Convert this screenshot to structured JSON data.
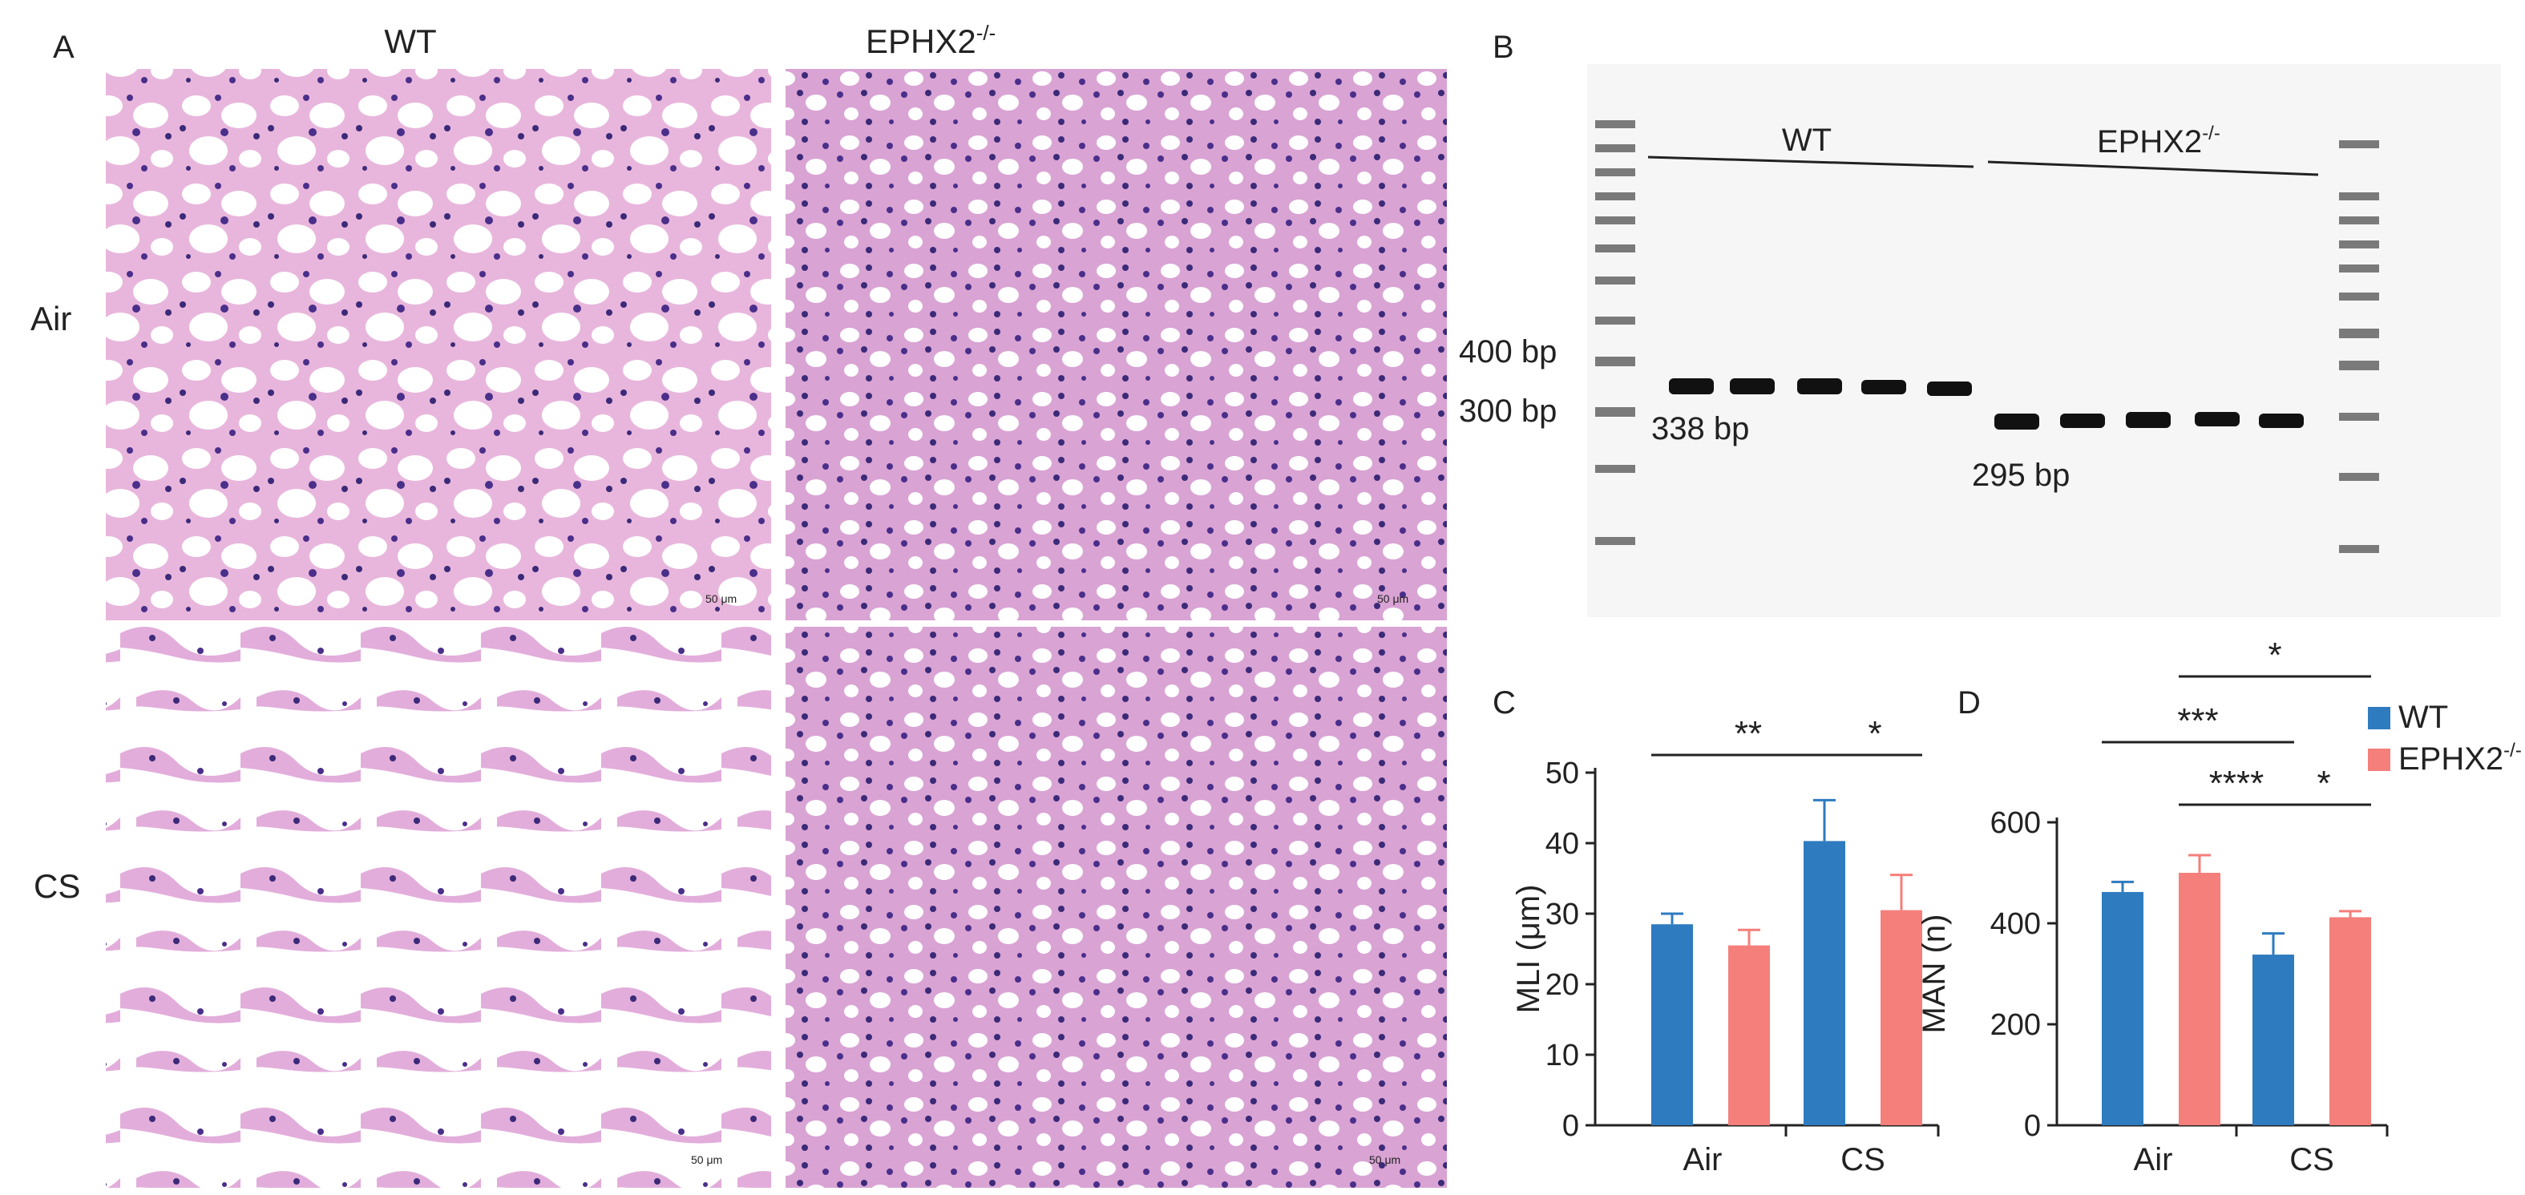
{
  "panel_a": {
    "letter": "A",
    "col_wt": "WT",
    "col_ko": "EPHX2",
    "col_ko_sup": "-/-",
    "row_air": "Air",
    "row_cs": "CS",
    "scale_label": "50 μm"
  },
  "panel_b": {
    "letter": "B",
    "group_wt": "WT",
    "group_ko": "EPHX2",
    "group_ko_sup": "-/-",
    "marker_400": "400 bp",
    "marker_300": "300 bp",
    "band_wt": "338 bp",
    "band_ko": "295 bp"
  },
  "legend": {
    "wt": "WT",
    "ko": "EPHX2",
    "ko_sup": "-/-",
    "wt_color": "#2e7bbf",
    "ko_color": "#f47f7b"
  },
  "chart_data": [
    {
      "type": "bar",
      "panel": "C",
      "ylabel": "MLI (μm)",
      "categories": [
        "Air",
        "CS"
      ],
      "ylim": [
        0,
        50
      ],
      "yticks": [
        0,
        10,
        20,
        30,
        40,
        50
      ],
      "series": [
        {
          "name": "WT",
          "values": [
            28.5,
            40.3
          ],
          "errors": [
            1.5,
            5.8
          ]
        },
        {
          "name": "EPHX2-/-",
          "values": [
            25.5,
            30.5
          ],
          "errors": [
            2.2,
            5.0
          ]
        }
      ],
      "significance": [
        {
          "from": [
            0,
            0
          ],
          "to": [
            1,
            0
          ],
          "label": "**"
        },
        {
          "from": [
            1,
            0
          ],
          "to": [
            1,
            1
          ],
          "label": "*"
        }
      ]
    },
    {
      "type": "bar",
      "panel": "D",
      "ylabel": "MAN (n)",
      "categories": [
        "Air",
        "CS"
      ],
      "ylim": [
        0,
        600
      ],
      "yticks": [
        0,
        200,
        400,
        600
      ],
      "series": [
        {
          "name": "WT",
          "values": [
            462,
            338
          ],
          "errors": [
            20,
            42
          ]
        },
        {
          "name": "EPHX2-/-",
          "values": [
            500,
            412
          ],
          "errors": [
            35,
            12
          ]
        }
      ],
      "significance": [
        {
          "from": [
            0,
            1
          ],
          "to": [
            1,
            1
          ],
          "label": "*"
        },
        {
          "from": [
            0,
            0
          ],
          "to": [
            1,
            0
          ],
          "label": "***"
        },
        {
          "from": [
            0,
            1
          ],
          "to": [
            1,
            0
          ],
          "label": "****"
        },
        {
          "from": [
            1,
            0
          ],
          "to": [
            1,
            1
          ],
          "label": "*"
        }
      ]
    }
  ]
}
